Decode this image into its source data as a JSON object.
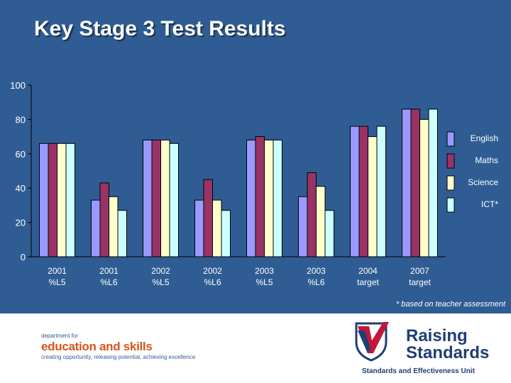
{
  "slide": {
    "title": "Key Stage 3 Test Results",
    "footnote": "* based on teacher assessment"
  },
  "colors": {
    "background": "#2f5d93",
    "English": "#9999ff",
    "Maths": "#993366",
    "Science": "#ffffcc",
    "ICT*": "#ccffff"
  },
  "chart_data": {
    "type": "bar",
    "categories": [
      "2001 %L5",
      "2001 %L6",
      "2002 %L5",
      "2002 %L6",
      "2003 %L5",
      "2003 %L6",
      "2004 target",
      "2007 target"
    ],
    "series": [
      {
        "name": "English",
        "values": [
          66,
          33,
          68,
          33,
          68,
          35,
          76,
          86
        ]
      },
      {
        "name": "Maths",
        "values": [
          66,
          43,
          68,
          45,
          70,
          49,
          76,
          86
        ]
      },
      {
        "name": "Science",
        "values": [
          66,
          35,
          68,
          33,
          68,
          41,
          70,
          80
        ]
      },
      {
        "name": "ICT*",
        "values": [
          66,
          27,
          66,
          27,
          68,
          27,
          76,
          86
        ]
      }
    ],
    "title": "Key Stage 3 Test Results",
    "xlabel": "",
    "ylabel": "",
    "ylim": [
      0,
      100
    ],
    "yticks": [
      0,
      20,
      40,
      60,
      80,
      100
    ],
    "grid": false,
    "legend": "right"
  },
  "logos": {
    "dfes": {
      "line1": "department for",
      "line2": "education and skills",
      "line3": "creating opportunity, releasing potential, achieving excellence"
    },
    "raising_standards": {
      "line1": "Raising",
      "line2": "Standards",
      "subtitle": "Standards and Effectiveness Unit"
    }
  }
}
